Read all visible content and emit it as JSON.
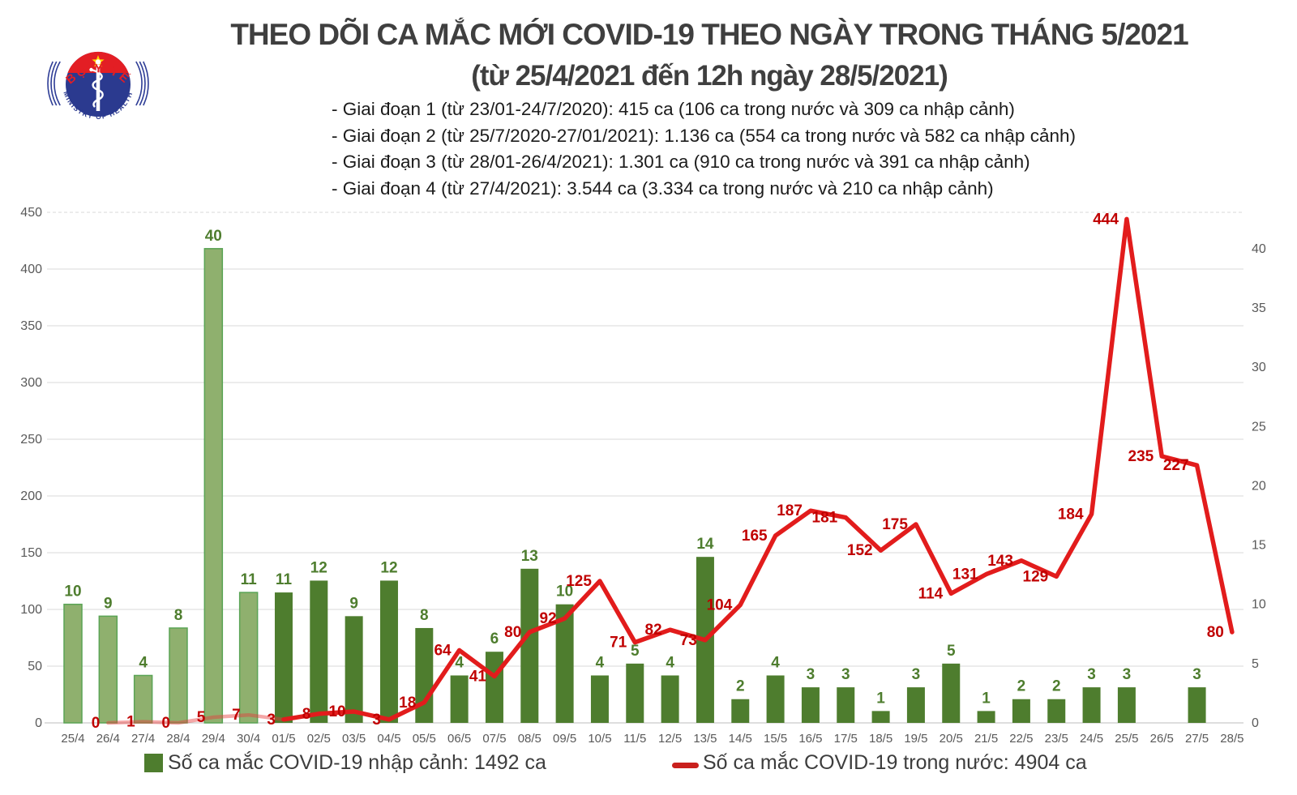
{
  "header": {
    "title_line1": "THEO DÕI CA MẮC MỚI COVID-19 THEO NGÀY TRONG THÁNG 5/2021",
    "title_line2": "(từ 25/4/2021 đến 12h ngày 28/5/2021)",
    "phases": [
      "- Giai đoạn 1 (từ 23/01-24/7/2020): 415 ca (106 ca trong nước và 309 ca nhập cảnh)",
      "- Giai đoạn 2 (từ 25/7/2020-27/01/2021): 1.136 ca (554 ca trong nước và 582 ca nhập cảnh)",
      "- Giai đoạn 3 (từ 28/01-26/4/2021): 1.301 ca (910 ca trong nước và 391 ca nhập cảnh)",
      "- Giai đoạn 4 (từ 27/4/2021): 3.544 ca (3.334 ca trong nước và 210 ca nhập cảnh)"
    ]
  },
  "logo": {
    "arc_top": "BỘ Y TẾ",
    "arc_bottom": "MINISTRY OF HEALTH",
    "colors": {
      "red": "#e31e24",
      "navy": "#2b3a8f",
      "star": "#ffd400"
    }
  },
  "legend": {
    "bar_label": "Số ca mắc COVID-19 nhập cảnh: 1492 ca",
    "line_label": "Số ca mắc COVID-19 trong nước: 4904 ca"
  },
  "chart_data": {
    "type": "bar+line",
    "title": "THEO DÕI CA MẮC MỚI COVID-19 THEO NGÀY TRONG THÁNG 5/2021",
    "categories": [
      "25/4",
      "26/4",
      "27/4",
      "28/4",
      "29/4",
      "30/4",
      "01/5",
      "02/5",
      "03/5",
      "04/5",
      "05/5",
      "06/5",
      "07/5",
      "08/5",
      "09/5",
      "10/5",
      "11/5",
      "12/5",
      "13/5",
      "14/5",
      "15/5",
      "16/5",
      "17/5",
      "18/5",
      "19/5",
      "20/5",
      "21/5",
      "22/5",
      "23/5",
      "24/5",
      "25/5",
      "26/5",
      "27/5",
      "28/5"
    ],
    "series": [
      {
        "name": "Số ca mắc COVID-19 nhập cảnh",
        "type": "bar",
        "axis": "right",
        "values": [
          10,
          9,
          4,
          8,
          40,
          11,
          11,
          12,
          9,
          12,
          8,
          4,
          6,
          13,
          10,
          4,
          5,
          4,
          14,
          2,
          4,
          3,
          3,
          1,
          3,
          5,
          1,
          2,
          2,
          3,
          3,
          null,
          3,
          null
        ]
      },
      {
        "name": "Số ca mắc COVID-19 trong nước",
        "type": "line",
        "axis": "left",
        "values": [
          null,
          0,
          1,
          0,
          5,
          7,
          3,
          8,
          10,
          3,
          18,
          64,
          41,
          80,
          92,
          125,
          71,
          82,
          73,
          104,
          165,
          187,
          181,
          152,
          175,
          114,
          131,
          143,
          129,
          184,
          444,
          235,
          227,
          80
        ],
        "solid_from_index": 6
      }
    ],
    "left_axis": {
      "ticks": [
        0,
        50,
        100,
        150,
        200,
        250,
        300,
        350,
        400,
        450
      ],
      "min": 0,
      "max": 450
    },
    "right_axis": {
      "ticks": [
        0,
        5,
        10,
        15,
        20,
        25,
        30,
        35,
        40
      ],
      "left_units_per_right_unit": 10.45
    },
    "april_bar_count": 6,
    "legend_position": "bottom",
    "grid": true,
    "colors": {
      "bar_may": "#4e7d2e",
      "bar_april_fill": "#8fb06e",
      "bar_april_stroke": "#5aa455",
      "bar_label": "#4e7d2e",
      "line": "#e21c1c",
      "line_faded": "rgba(230,60,60,0.45)",
      "line_label": "#c00000",
      "grid": "#d9d9d9",
      "axis_text": "#595959"
    }
  }
}
